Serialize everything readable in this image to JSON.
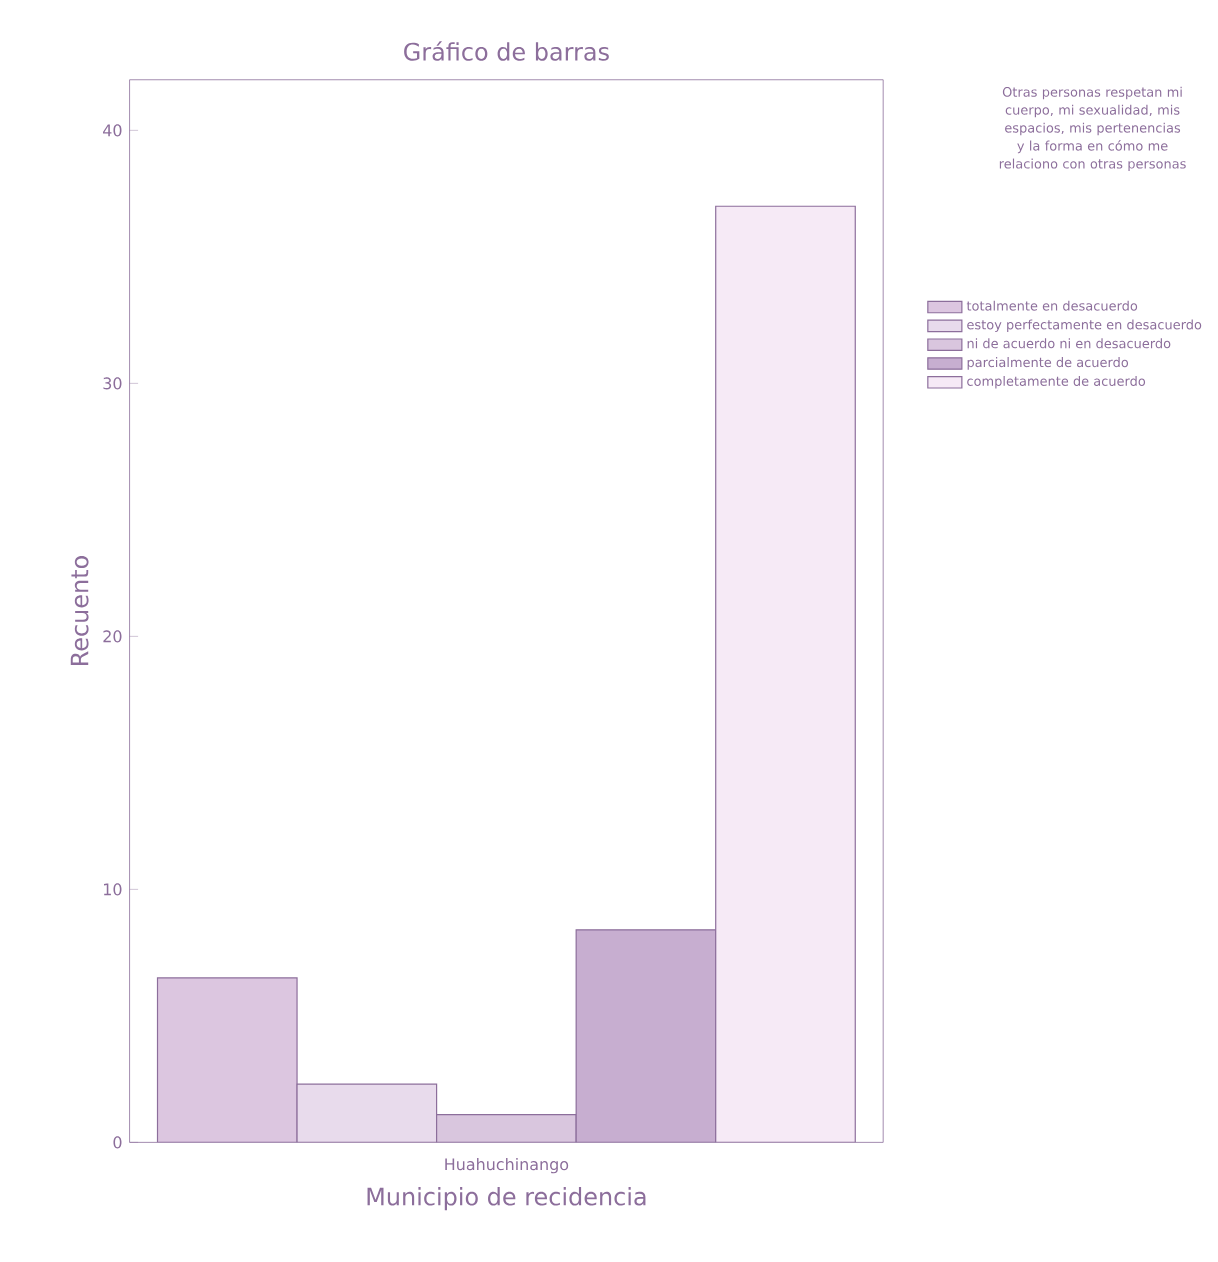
{
  "chart_data": {
    "type": "bar",
    "title": "Gráfico de barras",
    "xlabel": "Municipio de recidencia",
    "ylabel": "Recuento",
    "legend_title": "Otras personas respetan mi cuerpo, mi sexualidad, mis espacios, mis pertenencias y la forma en cómo me relaciono con otras personas",
    "categories": [
      "Huahuchinango"
    ],
    "series": [
      {
        "name": "totalmente en desacuerdo",
        "color": "#dcc6e0",
        "values": [
          6.5
        ]
      },
      {
        "name": "estoy perfectamente en desacuerdo",
        "color": "#e8dbec",
        "values": [
          2.3
        ]
      },
      {
        "name": "ni de acuerdo ni en desacuerdo",
        "color": "#d9c6de",
        "values": [
          1.1
        ]
      },
      {
        "name": "parcialmente de acuerdo",
        "color": "#c7aed0",
        "values": [
          8.4
        ]
      },
      {
        "name": "completamente de acuerdo",
        "color": "#f6eaf6",
        "values": [
          37
        ]
      }
    ],
    "ylim": [
      0,
      42
    ],
    "yticks": [
      {
        "value": 0,
        "label": "0"
      },
      {
        "value": 10,
        "label": "10"
      },
      {
        "value": 20,
        "label": "20"
      },
      {
        "value": 30,
        "label": "30"
      },
      {
        "value": 40,
        "label": "40"
      }
    ],
    "grid": false,
    "legend": "right"
  }
}
